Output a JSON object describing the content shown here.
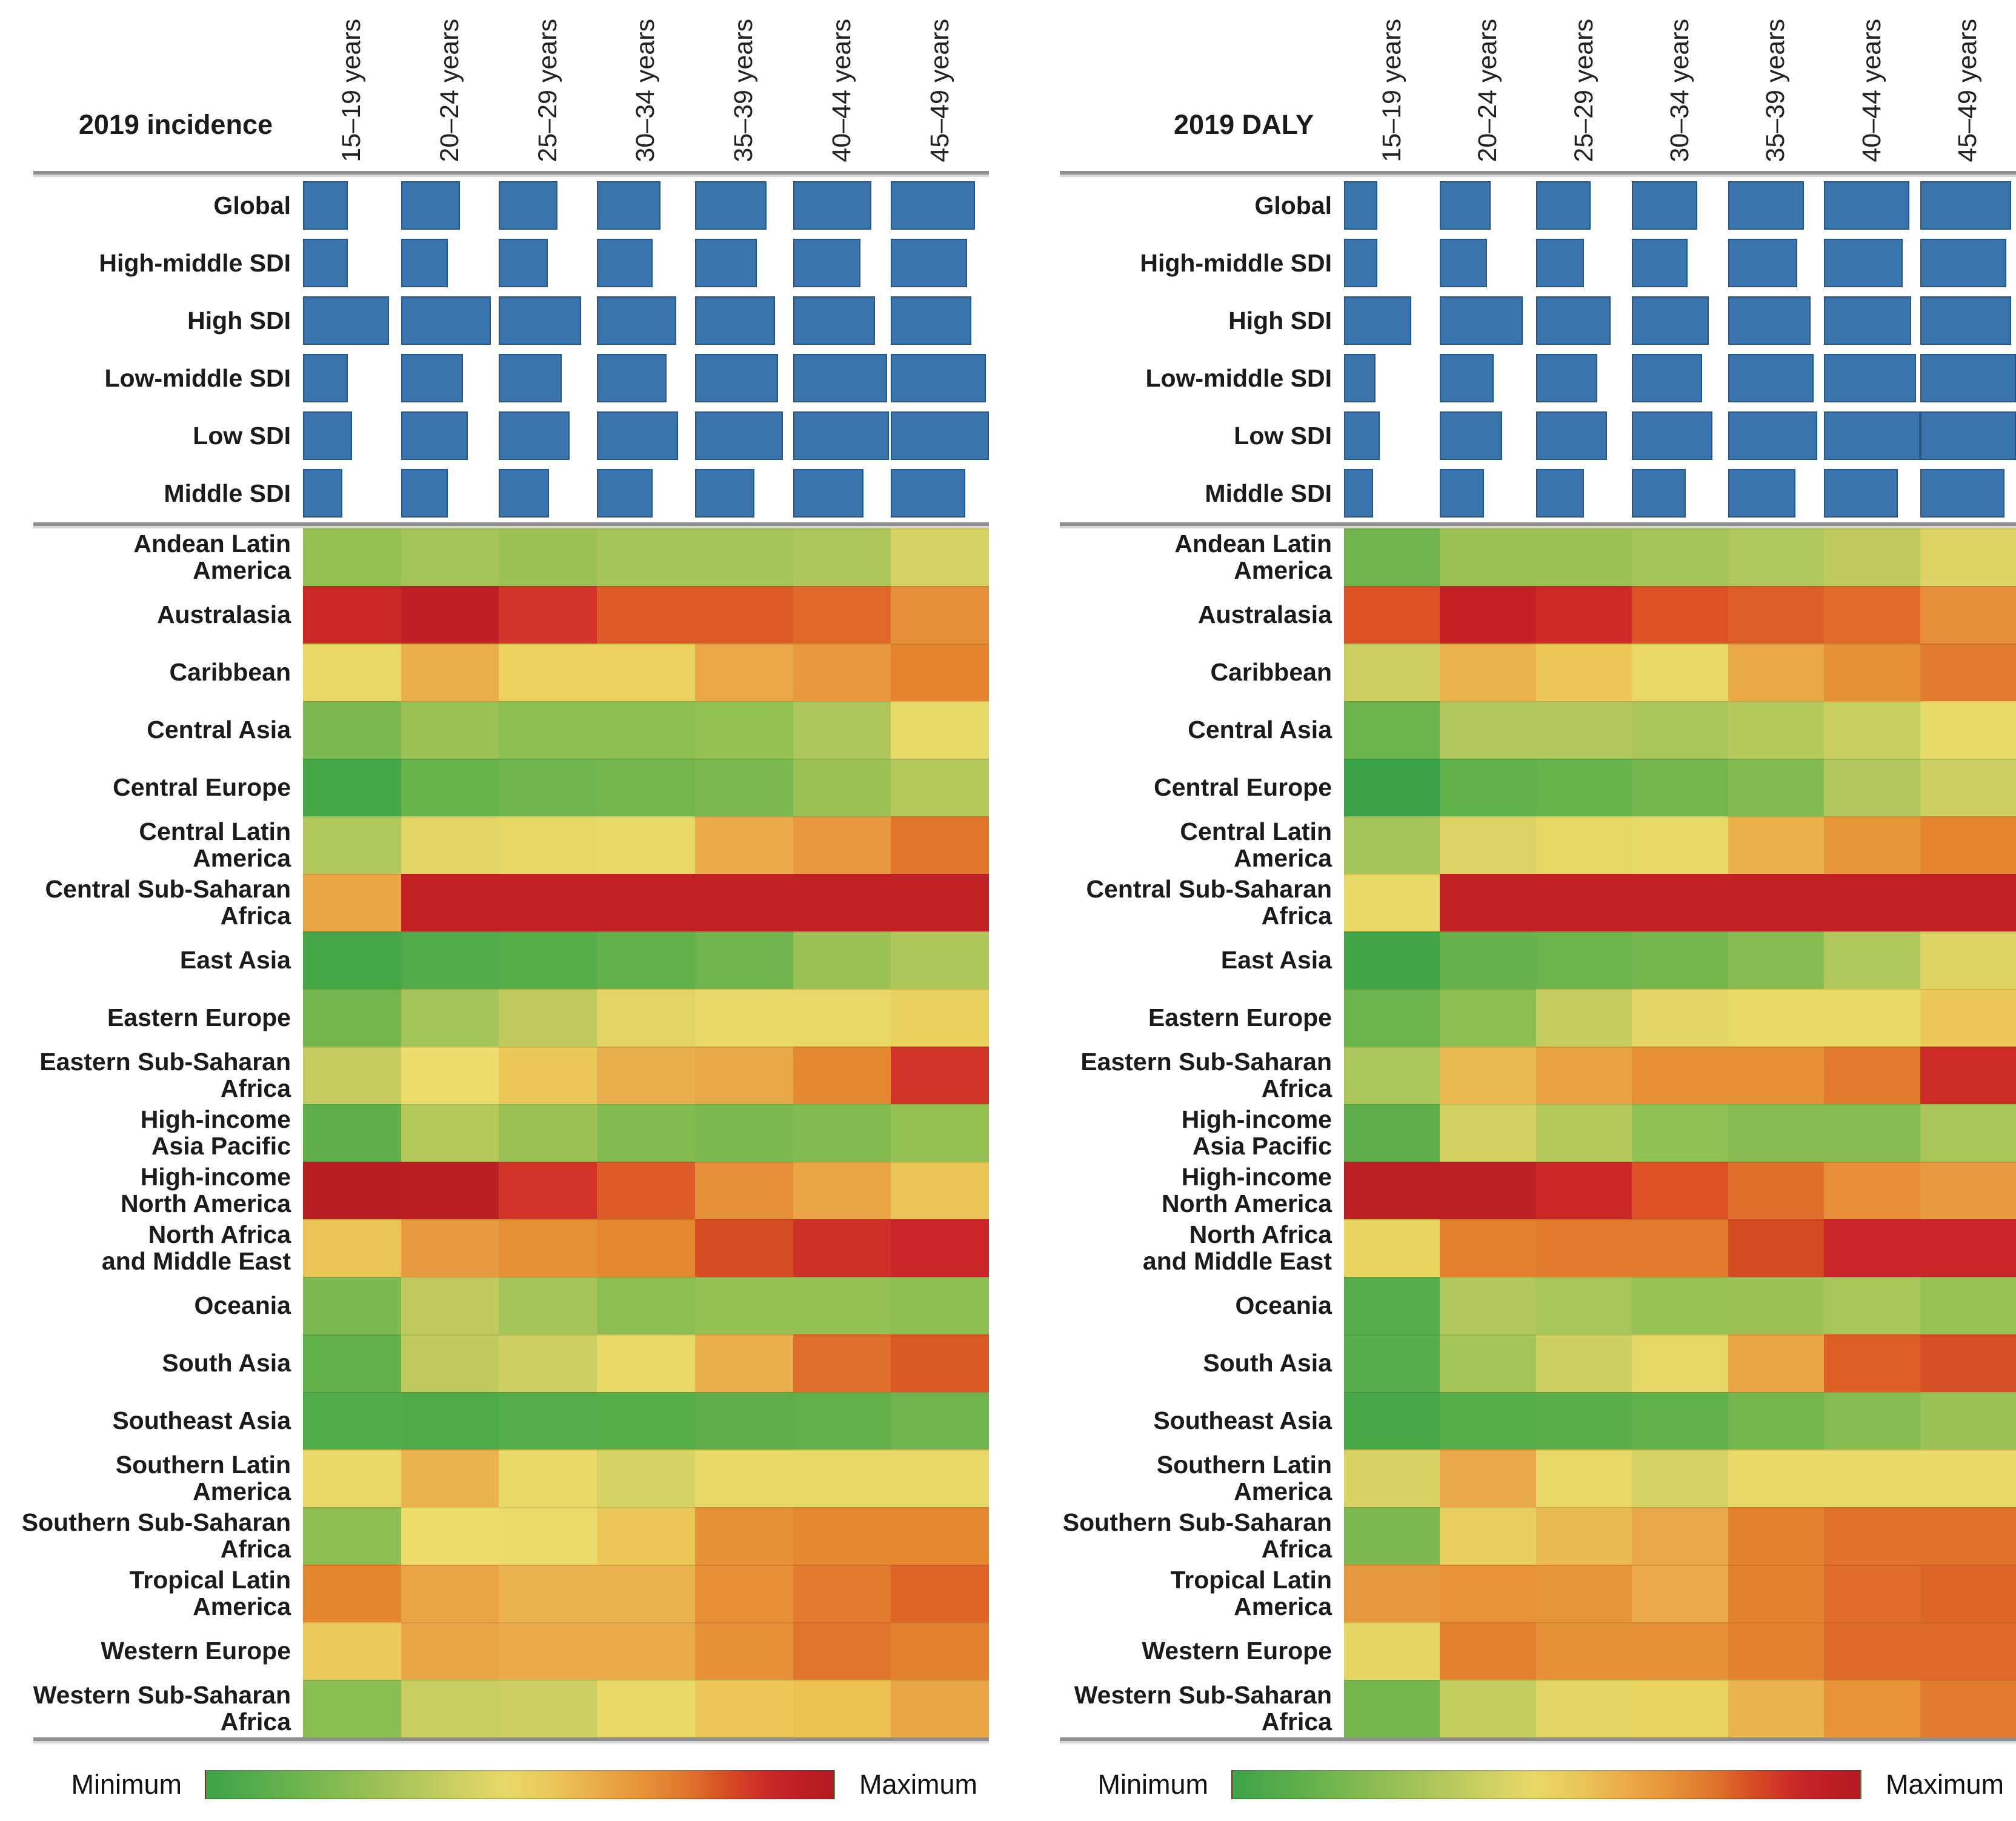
{
  "chart_data": [
    {
      "type": "heatmap",
      "title": "2019 incidence",
      "x_categories": [
        "15–19 years",
        "20–24 years",
        "25–29 years",
        "30–34 years",
        "35–39 years",
        "40–44 years",
        "45–49 years"
      ],
      "legend": {
        "min": "Minimum",
        "max": "Maximum"
      },
      "bar_color": "#3a74ad",
      "bar_rows": [
        {
          "label": "Global",
          "values": [
            0.46,
            0.6,
            0.6,
            0.65,
            0.73,
            0.8,
            0.86
          ]
        },
        {
          "label": "High-middle SDI",
          "values": [
            0.46,
            0.48,
            0.5,
            0.57,
            0.63,
            0.69,
            0.78
          ]
        },
        {
          "label": "High SDI",
          "values": [
            0.88,
            0.92,
            0.84,
            0.81,
            0.82,
            0.84,
            0.82
          ]
        },
        {
          "label": "Low-middle SDI",
          "values": [
            0.46,
            0.63,
            0.64,
            0.71,
            0.85,
            0.96,
            0.97
          ]
        },
        {
          "label": "Low SDI",
          "values": [
            0.5,
            0.68,
            0.72,
            0.83,
            0.9,
            0.98,
            1.0
          ]
        },
        {
          "label": "Middle SDI",
          "values": [
            0.4,
            0.48,
            0.51,
            0.57,
            0.61,
            0.72,
            0.76
          ]
        }
      ],
      "heatmap_rows": [
        {
          "label": "Andean Latin\nAmerica",
          "colors": [
            "#94c054",
            "#a5c459",
            "#9cc257",
            "#a5c459",
            "#a5c459",
            "#aec65a",
            "#d6d365"
          ]
        },
        {
          "label": "Australasia",
          "colors": [
            "#c92827",
            "#bf1f25",
            "#d13428",
            "#dd5b27",
            "#dd5b27",
            "#e0692a",
            "#e68f3a"
          ]
        },
        {
          "label": "Caribbean",
          "colors": [
            "#e9d867",
            "#eaad4b",
            "#ebd260",
            "#ebd260",
            "#eaa748",
            "#e89940",
            "#e5842f"
          ]
        },
        {
          "label": "Central Asia",
          "colors": [
            "#7cb950",
            "#9cc257",
            "#8cbe52",
            "#8cbe52",
            "#94c054",
            "#aec65a",
            "#e8da68"
          ]
        },
        {
          "label": "Central Europe",
          "colors": [
            "#46a748",
            "#68b24c",
            "#6fb44e",
            "#74b54e",
            "#7cb950",
            "#9cc257",
            "#b5c95d"
          ]
        },
        {
          "label": "Central Latin\nAmerica",
          "colors": [
            "#b0c75b",
            "#e2d565",
            "#e6d766",
            "#e8d867",
            "#eaab4a",
            "#e89940",
            "#e1772d"
          ]
        },
        {
          "label": "Central Sub-Saharan\nAfrica",
          "colors": [
            "#e8a647",
            "#c22126",
            "#c22126",
            "#c22126",
            "#c22126",
            "#c22126",
            "#c22126"
          ]
        },
        {
          "label": "East Asia",
          "colors": [
            "#46a748",
            "#52ab4a",
            "#58ad4b",
            "#62b04c",
            "#6fb44e",
            "#9cc257",
            "#aec65a"
          ]
        },
        {
          "label": "Eastern Europe",
          "colors": [
            "#74b54e",
            "#a5c459",
            "#c0cb5f",
            "#e2d565",
            "#e8d968",
            "#e9d867",
            "#ead05e"
          ]
        },
        {
          "label": "Eastern Sub-Saharan\nAfrica",
          "colors": [
            "#c6cd60",
            "#ecdc6b",
            "#ebc857",
            "#eaaf4d",
            "#e9a847",
            "#e48832",
            "#d13428"
          ]
        },
        {
          "label": "High-income\nAsia Pacific",
          "colors": [
            "#5fae4b",
            "#b5c95d",
            "#9cc257",
            "#84bb51",
            "#7cb950",
            "#84bb51",
            "#94c054"
          ]
        },
        {
          "label": "High-income\nNorth America",
          "colors": [
            "#b71e23",
            "#bb1f24",
            "#d13428",
            "#dd5b27",
            "#e68f3a",
            "#e9a446",
            "#ebc457"
          ]
        },
        {
          "label": "North Africa\nand Middle East",
          "colors": [
            "#ebc457",
            "#e79a3f",
            "#e69138",
            "#e48832",
            "#d64c24",
            "#cd3128",
            "#c82629"
          ]
        },
        {
          "label": "Oceania",
          "colors": [
            "#7cb950",
            "#c0cb5f",
            "#a5c459",
            "#8cbe52",
            "#94c054",
            "#94c054",
            "#8cbe52"
          ]
        },
        {
          "label": "South Asia",
          "colors": [
            "#62b04c",
            "#c0cb5f",
            "#ccd062",
            "#e8d968",
            "#ebae4d",
            "#de6f2c",
            "#d95a27"
          ]
        },
        {
          "label": "Southeast Asia",
          "colors": [
            "#52ab4a",
            "#4faa49",
            "#55ac4a",
            "#58ad4b",
            "#5fae4b",
            "#62b04c",
            "#6fb44e"
          ]
        },
        {
          "label": "Southern Latin\nAmerica",
          "colors": [
            "#e8d968",
            "#eab34e",
            "#e8d968",
            "#d6d365",
            "#e8d968",
            "#e8d867",
            "#e8d867"
          ]
        },
        {
          "label": "Southern Sub-Saharan\nAfrica",
          "colors": [
            "#8cbe52",
            "#ecdc6b",
            "#ebda69",
            "#ebc857",
            "#e69138",
            "#e48832",
            "#e48832"
          ]
        },
        {
          "label": "Tropical Latin\nAmerica",
          "colors": [
            "#e48530",
            "#e9a446",
            "#ebb350",
            "#ebb350",
            "#e78f37",
            "#e37b2e",
            "#dd6528"
          ]
        },
        {
          "label": "Western Europe",
          "colors": [
            "#ebca5c",
            "#e9a647",
            "#eaab4a",
            "#eaab4a",
            "#e69138",
            "#e1752d",
            "#e3812f"
          ]
        },
        {
          "label": "Western Sub-Saharan\nAfrica",
          "colors": [
            "#8abd52",
            "#c9ce61",
            "#ccd062",
            "#e8d968",
            "#ebc857",
            "#ebc152",
            "#e9a647"
          ]
        }
      ]
    },
    {
      "type": "heatmap",
      "title": "2019 DALY",
      "x_categories": [
        "15–19 years",
        "20–24 years",
        "25–29 years",
        "30–34 years",
        "35–39 years",
        "40–44 years",
        "45–49 years"
      ],
      "legend": {
        "min": "Minimum",
        "max": "Maximum"
      },
      "bar_color": "#3a74ad",
      "bar_rows": [
        {
          "label": "Global",
          "values": [
            0.35,
            0.53,
            0.57,
            0.68,
            0.79,
            0.89,
            0.95
          ]
        },
        {
          "label": "High-middle SDI",
          "values": [
            0.35,
            0.49,
            0.5,
            0.58,
            0.72,
            0.82,
            0.9
          ]
        },
        {
          "label": "High SDI",
          "values": [
            0.7,
            0.86,
            0.78,
            0.8,
            0.86,
            0.91,
            0.95
          ]
        },
        {
          "label": "Low-middle SDI",
          "values": [
            0.33,
            0.56,
            0.64,
            0.73,
            0.89,
            0.96,
            1.0
          ]
        },
        {
          "label": "Low SDI",
          "values": [
            0.37,
            0.65,
            0.74,
            0.84,
            0.93,
            1.0,
            1.0
          ]
        },
        {
          "label": "Middle SDI",
          "values": [
            0.3,
            0.46,
            0.5,
            0.56,
            0.7,
            0.77,
            0.88
          ]
        }
      ],
      "heatmap_rows": [
        {
          "label": "Andean Latin\nAmerica",
          "colors": [
            "#6fb44e",
            "#9cc257",
            "#9cc257",
            "#a5c459",
            "#b0c75b",
            "#c0cb5f",
            "#ddd465"
          ]
        },
        {
          "label": "Australasia",
          "colors": [
            "#dc5226",
            "#c42127",
            "#cd2a27",
            "#dc5226",
            "#dd5e28",
            "#e06b2b",
            "#e68f3a"
          ]
        },
        {
          "label": "Caribbean",
          "colors": [
            "#ccd062",
            "#eab34e",
            "#ebc857",
            "#e9d867",
            "#eaa948",
            "#e69138",
            "#e17b2e"
          ]
        },
        {
          "label": "Central Asia",
          "colors": [
            "#6ab34d",
            "#b2c85c",
            "#b2c85c",
            "#aac65a",
            "#b5c95d",
            "#c9ce61",
            "#e8da68"
          ]
        },
        {
          "label": "Central Europe",
          "colors": [
            "#3aa147",
            "#62b04c",
            "#68b24c",
            "#74b54e",
            "#84bb51",
            "#b2c85c",
            "#ccd062"
          ]
        },
        {
          "label": "Central Latin\nAmerica",
          "colors": [
            "#a5c459",
            "#dbd365",
            "#e5d766",
            "#e7d867",
            "#eab04c",
            "#e79739",
            "#e5862f"
          ]
        },
        {
          "label": "Central Sub-Saharan\nAfrica",
          "colors": [
            "#e8d967",
            "#c22126",
            "#c22126",
            "#c22126",
            "#c22126",
            "#c22126",
            "#c22126"
          ]
        },
        {
          "label": "East Asia",
          "colors": [
            "#42a548",
            "#66b14c",
            "#6db34d",
            "#77b64f",
            "#88bc52",
            "#b0c75b",
            "#ddd465"
          ]
        },
        {
          "label": "Eastern Europe",
          "colors": [
            "#6ab34d",
            "#8cbe52",
            "#c5cd60",
            "#e3d666",
            "#e9da68",
            "#e9da68",
            "#ebc857"
          ]
        },
        {
          "label": "Eastern Sub-Saharan\nAfrica",
          "colors": [
            "#abc65a",
            "#eaba52",
            "#e9a343",
            "#e79036",
            "#e79036",
            "#e27a2e",
            "#cc2d28"
          ]
        },
        {
          "label": "High-income\nAsia Pacific",
          "colors": [
            "#5fae4b",
            "#d5d264",
            "#b6c95d",
            "#90bf53",
            "#85bb51",
            "#85bb51",
            "#aac65a"
          ]
        },
        {
          "label": "High-income\nNorth America",
          "colors": [
            "#bb2025",
            "#bd2025",
            "#ca2727",
            "#dc5226",
            "#e1702c",
            "#e68e38",
            "#e89a40"
          ]
        },
        {
          "label": "North Africa\nand Middle East",
          "colors": [
            "#e7d55f",
            "#e3812f",
            "#e17b2e",
            "#e17b2e",
            "#d44b22",
            "#c8262a",
            "#c8262a"
          ]
        },
        {
          "label": "Oceania",
          "colors": [
            "#56ad4b",
            "#b2c85c",
            "#a8c55a",
            "#98c156",
            "#9cc257",
            "#a8c55a",
            "#98c156"
          ]
        },
        {
          "label": "South Asia",
          "colors": [
            "#56ad4b",
            "#a5c459",
            "#ccd062",
            "#e5d766",
            "#e9a446",
            "#dd6127",
            "#d55024"
          ]
        },
        {
          "label": "Southeast Asia",
          "colors": [
            "#48a849",
            "#58ad4b",
            "#5cae4b",
            "#62b04c",
            "#74b54e",
            "#85bb51",
            "#9cc257"
          ]
        },
        {
          "label": "Southern Latin\nAmerica",
          "colors": [
            "#d8d364",
            "#e9a94a",
            "#e7d867",
            "#d5d364",
            "#e8d968",
            "#e8d968",
            "#e8d968"
          ]
        },
        {
          "label": "Southern Sub-Saharan\nAfrica",
          "colors": [
            "#7cb950",
            "#e7d05f",
            "#eaba52",
            "#e9a94a",
            "#e3812f",
            "#e0722c",
            "#e0722c"
          ]
        },
        {
          "label": "Tropical Latin\nAmerica",
          "colors": [
            "#e5983e",
            "#e79138",
            "#e79539",
            "#eaa94a",
            "#e3812f",
            "#df6c2a",
            "#dd6528"
          ]
        },
        {
          "label": "Western Europe",
          "colors": [
            "#e6d463",
            "#e3812f",
            "#e69137",
            "#e69137",
            "#e3812f",
            "#dd6a29",
            "#dd6a29"
          ]
        },
        {
          "label": "Western Sub-Saharan\nAfrica",
          "colors": [
            "#76b64f",
            "#c2cc5f",
            "#e2d565",
            "#e8d35f",
            "#eab550",
            "#e79338",
            "#e17c2e"
          ]
        }
      ]
    }
  ]
}
